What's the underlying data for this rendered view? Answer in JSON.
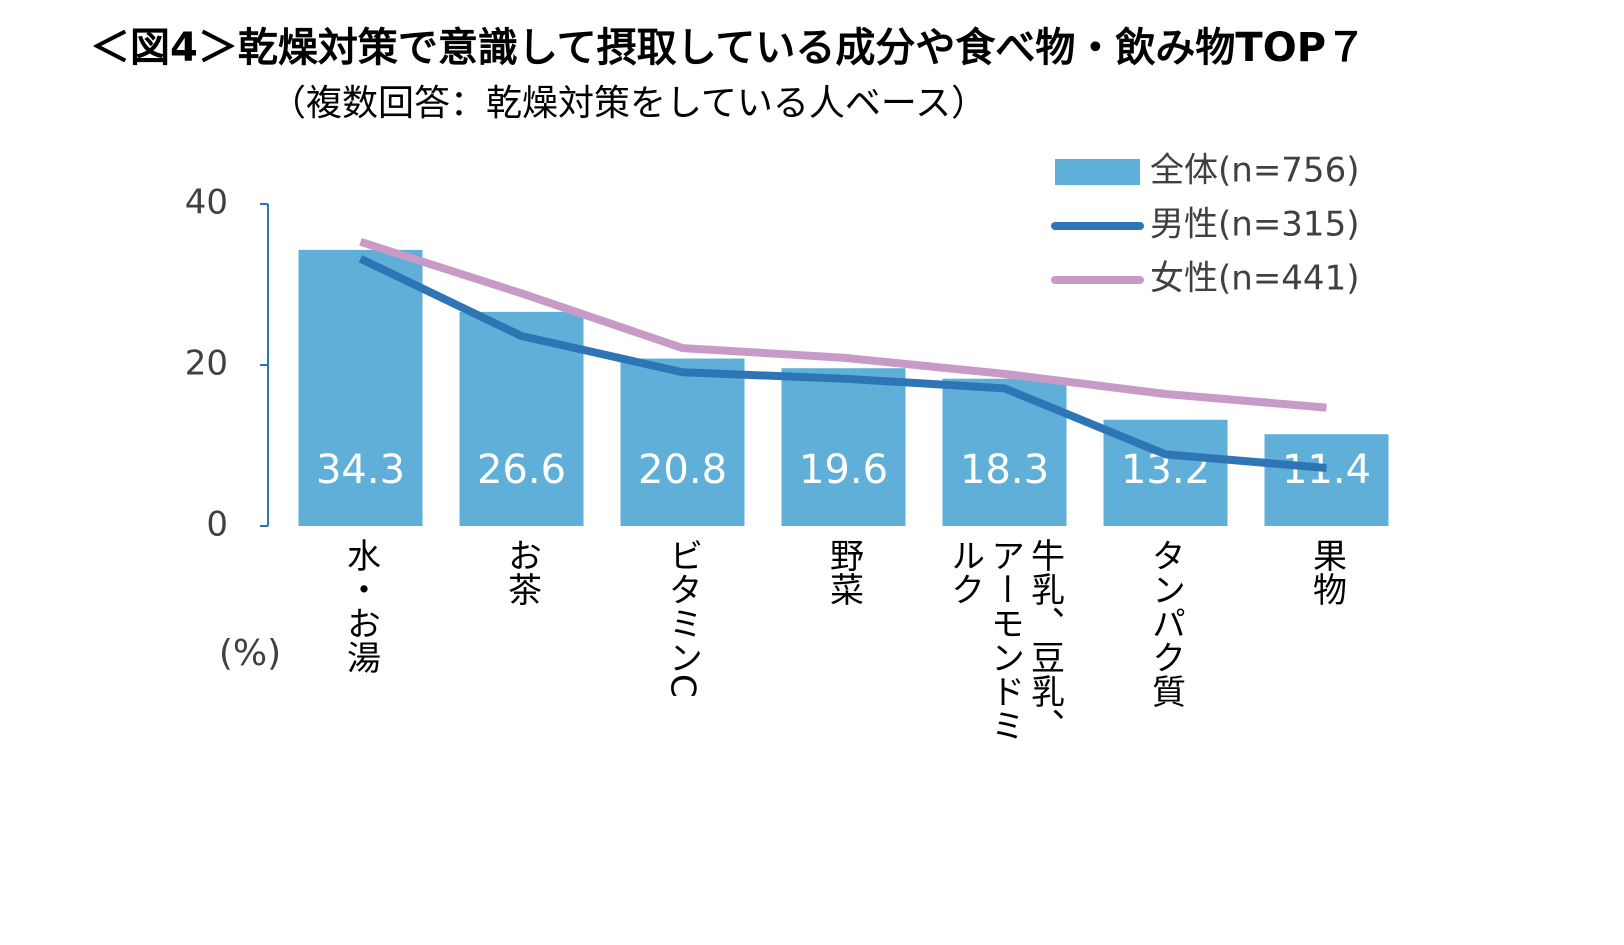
{
  "chart_data": {
    "type": "bar",
    "title": "＜図4＞乾燥対策で意識して摂取している成分や食べ物・飲み物TOP７",
    "subtitle": "（複数回答：乾燥対策をしている人ベース）",
    "y_label": "(%)",
    "categories": [
      "水・お湯",
      "お茶",
      "ビタミンC",
      "野菜",
      "牛乳、豆乳、アーモンドミルク",
      "タンパク質",
      "果物"
    ],
    "series": [
      {
        "name": "全体(n=756)",
        "type": "bar",
        "color": "#5fafd8",
        "values": [
          34.3,
          26.6,
          20.8,
          19.6,
          18.3,
          13.2,
          11.4
        ]
      },
      {
        "name": "男性(n=315)",
        "type": "line",
        "color": "#2e75b6",
        "values": [
          33.2,
          23.6,
          19.1,
          18.3,
          17.1,
          8.9,
          7.2
        ]
      },
      {
        "name": "女性(n=441)",
        "type": "line",
        "color": "#c89ac8",
        "values": [
          35.3,
          28.9,
          22.1,
          20.9,
          18.9,
          16.4,
          14.7
        ]
      }
    ],
    "ylim": [
      0,
      40
    ],
    "yticks": [
      0,
      20,
      40
    ],
    "grid": false,
    "legend": "top-right"
  }
}
